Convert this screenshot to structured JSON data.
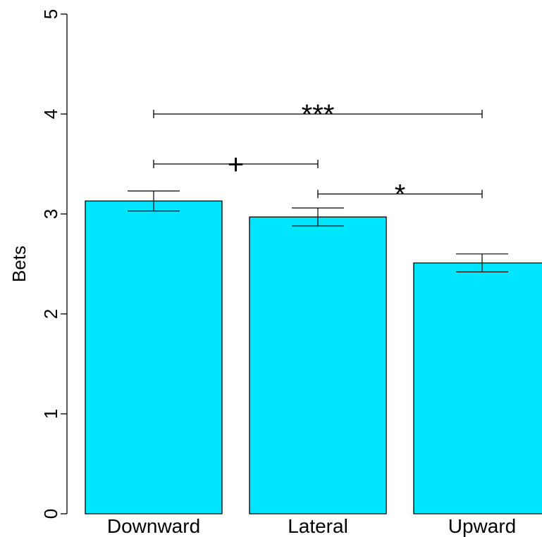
{
  "chart_data": {
    "type": "bar",
    "title": "",
    "xlabel": "",
    "ylabel": "Bets",
    "ylim": [
      0,
      5
    ],
    "yticks": [
      0,
      1,
      2,
      3,
      4,
      5
    ],
    "categories": [
      "Downward",
      "Lateral",
      "Upward"
    ],
    "values": [
      3.13,
      2.97,
      2.51
    ],
    "error": [
      0.1,
      0.09,
      0.09
    ],
    "bar_color": "#00E5FF",
    "grid": false,
    "legend": "none",
    "significance": [
      {
        "from": 0,
        "to": 2,
        "y": 4.0,
        "label": "***"
      },
      {
        "from": 0,
        "to": 1,
        "y": 3.5,
        "label": "+"
      },
      {
        "from": 1,
        "to": 2,
        "y": 3.2,
        "label": "*"
      }
    ]
  }
}
